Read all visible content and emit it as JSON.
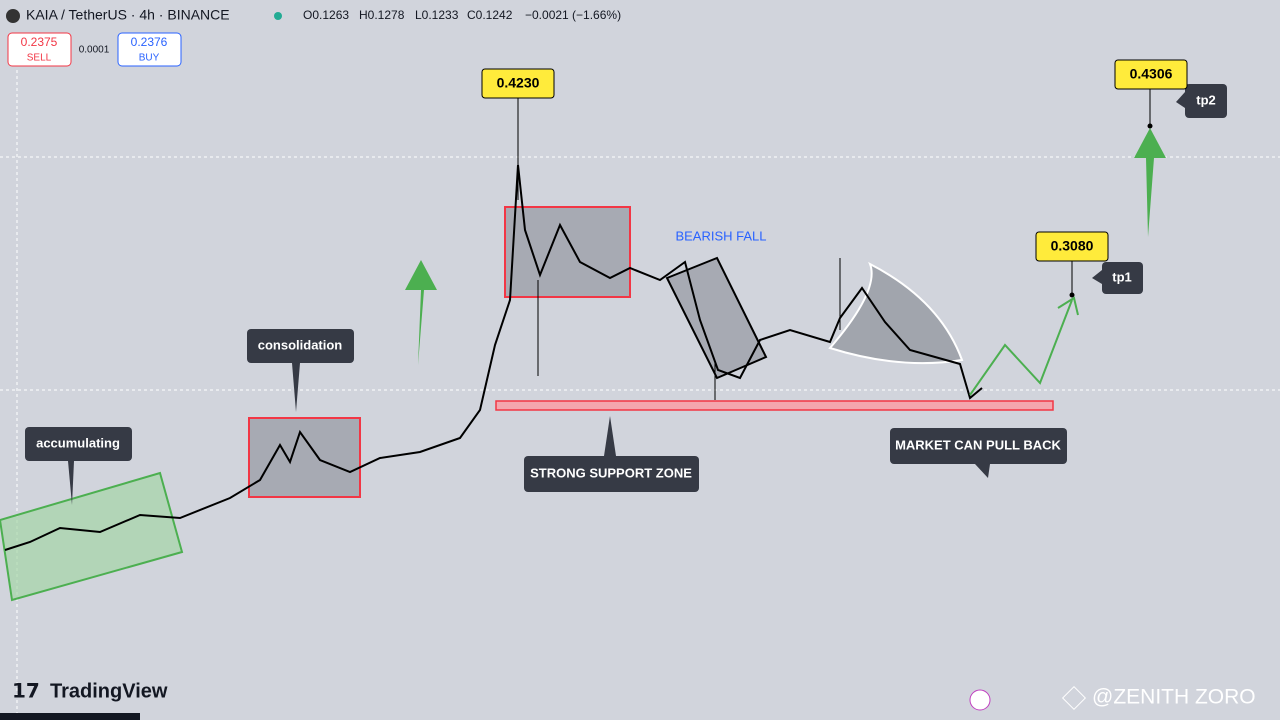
{
  "header": {
    "symbol": "KAIA / TetherUS · 4h · BINANCE",
    "open": "O0.1263",
    "high": "H0.1278",
    "low": "L0.1233",
    "close": "C0.1242",
    "change": "−0.0021 (−1.66%)"
  },
  "trade": {
    "sell_price": "0.2375",
    "sell_label": "SELL",
    "spread": "0.0001",
    "buy_price": "0.2376",
    "buy_label": "BUY"
  },
  "annotations": {
    "accumulating": "accumulating",
    "consolidation": "consolidation",
    "peak_price": "0.4230",
    "bearish_fall": "BEARISH FALL",
    "support_zone": "STRONG SUPPORT ZONE",
    "tp1_price": "0.3080",
    "tp1": "tp1",
    "tp2_price": "0.4306",
    "tp2": "tp2",
    "pull_back": "MARKET CAN PULL BACK"
  },
  "footer": {
    "logo": "TradingView",
    "watermark": "@ZENITH ZORO"
  }
}
